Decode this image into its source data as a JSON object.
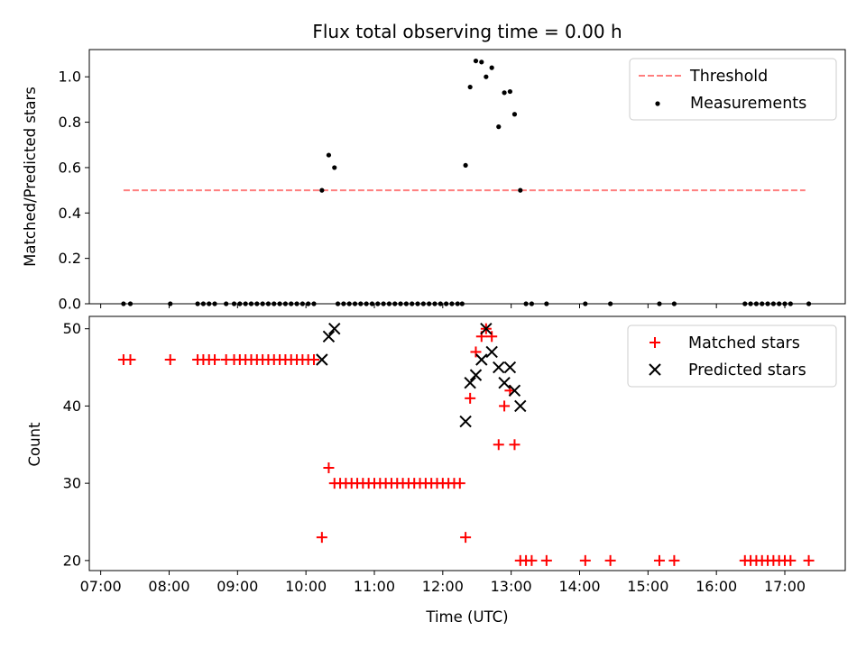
{
  "chart_data": [
    {
      "type": "scatter",
      "title": "Flux total observing time = 0.00 h",
      "ylabel": "Matched/Predicted stars",
      "xlabel": "",
      "xlim": [
        "06:50",
        "17:53"
      ],
      "ylim": [
        0,
        1.12
      ],
      "yticks": [
        "0.0",
        "0.2",
        "0.4",
        "0.6",
        "0.8",
        "1.0"
      ],
      "legend_position": "top-right",
      "threshold": {
        "name": "Threshold",
        "value": 0.5,
        "x_start": "07:20",
        "x_end": "17:18",
        "color": "#ff7f7f"
      },
      "series": [
        {
          "name": "Measurements",
          "color": "#000000",
          "points": [
            [
              "07:20",
              0
            ],
            [
              "07:26",
              0
            ],
            [
              "08:01",
              0
            ],
            [
              "08:25",
              0
            ],
            [
              "08:30",
              0
            ],
            [
              "08:35",
              0
            ],
            [
              "08:40",
              0
            ],
            [
              "08:50",
              0
            ],
            [
              "08:57",
              0
            ],
            [
              "09:02",
              0
            ],
            [
              "09:07",
              0
            ],
            [
              "09:12",
              0
            ],
            [
              "09:17",
              0
            ],
            [
              "09:22",
              0
            ],
            [
              "09:27",
              0
            ],
            [
              "09:32",
              0
            ],
            [
              "09:37",
              0
            ],
            [
              "09:42",
              0
            ],
            [
              "09:47",
              0
            ],
            [
              "09:52",
              0
            ],
            [
              "09:57",
              0
            ],
            [
              "10:02",
              0
            ],
            [
              "10:07",
              0
            ],
            [
              "10:14",
              0.5
            ],
            [
              "10:20",
              0.655
            ],
            [
              "10:25",
              0.6
            ],
            [
              "10:28",
              0
            ],
            [
              "10:33",
              0
            ],
            [
              "10:38",
              0
            ],
            [
              "10:43",
              0
            ],
            [
              "10:48",
              0
            ],
            [
              "10:53",
              0
            ],
            [
              "10:58",
              0
            ],
            [
              "11:03",
              0
            ],
            [
              "11:08",
              0
            ],
            [
              "11:13",
              0
            ],
            [
              "11:18",
              0
            ],
            [
              "11:23",
              0
            ],
            [
              "11:28",
              0
            ],
            [
              "11:33",
              0
            ],
            [
              "11:38",
              0
            ],
            [
              "11:43",
              0
            ],
            [
              "11:48",
              0
            ],
            [
              "11:53",
              0
            ],
            [
              "11:58",
              0
            ],
            [
              "12:03",
              0
            ],
            [
              "12:08",
              0
            ],
            [
              "12:13",
              0
            ],
            [
              "12:17",
              0
            ],
            [
              "12:20",
              0.61
            ],
            [
              "12:24",
              0.955
            ],
            [
              "12:29",
              1.07
            ],
            [
              "12:34",
              1.065
            ],
            [
              "12:38",
              1.0
            ],
            [
              "12:43",
              1.04
            ],
            [
              "12:49",
              0.78
            ],
            [
              "12:54",
              0.93
            ],
            [
              "12:59",
              0.935
            ],
            [
              "13:03",
              0.835
            ],
            [
              "13:08",
              0.5
            ],
            [
              "13:13",
              0
            ],
            [
              "13:18",
              0
            ],
            [
              "13:31",
              0
            ],
            [
              "14:05",
              0
            ],
            [
              "14:27",
              0
            ],
            [
              "15:10",
              0
            ],
            [
              "15:23",
              0
            ],
            [
              "16:25",
              0
            ],
            [
              "16:30",
              0
            ],
            [
              "16:35",
              0
            ],
            [
              "16:40",
              0
            ],
            [
              "16:45",
              0
            ],
            [
              "16:50",
              0
            ],
            [
              "16:55",
              0
            ],
            [
              "17:00",
              0
            ],
            [
              "17:05",
              0
            ],
            [
              "17:21",
              0
            ]
          ]
        }
      ]
    },
    {
      "type": "scatter",
      "title": "",
      "ylabel": "Count",
      "xlabel": "Time (UTC)",
      "xlim": [
        "06:50",
        "17:53"
      ],
      "ylim": [
        18.7,
        51.6
      ],
      "yticks": [
        "20",
        "30",
        "40",
        "50"
      ],
      "xticks": [
        "07:00",
        "08:00",
        "09:00",
        "10:00",
        "11:00",
        "12:00",
        "13:00",
        "14:00",
        "15:00",
        "16:00",
        "17:00"
      ],
      "legend_position": "top-right",
      "series": [
        {
          "name": "Matched stars",
          "color": "#ff0000",
          "marker": "plus",
          "points": [
            [
              "07:20",
              46
            ],
            [
              "07:26",
              46
            ],
            [
              "08:01",
              46
            ],
            [
              "08:25",
              46
            ],
            [
              "08:30",
              46
            ],
            [
              "08:35",
              46
            ],
            [
              "08:40",
              46
            ],
            [
              "08:50",
              46
            ],
            [
              "08:57",
              46
            ],
            [
              "09:02",
              46
            ],
            [
              "09:07",
              46
            ],
            [
              "09:12",
              46
            ],
            [
              "09:17",
              46
            ],
            [
              "09:22",
              46
            ],
            [
              "09:27",
              46
            ],
            [
              "09:32",
              46
            ],
            [
              "09:37",
              46
            ],
            [
              "09:42",
              46
            ],
            [
              "09:47",
              46
            ],
            [
              "09:52",
              46
            ],
            [
              "09:57",
              46
            ],
            [
              "10:02",
              46
            ],
            [
              "10:07",
              46
            ],
            [
              "10:14",
              23
            ],
            [
              "10:20",
              32
            ],
            [
              "10:25",
              30
            ],
            [
              "10:30",
              30
            ],
            [
              "10:35",
              30
            ],
            [
              "10:40",
              30
            ],
            [
              "10:45",
              30
            ],
            [
              "10:50",
              30
            ],
            [
              "10:55",
              30
            ],
            [
              "11:00",
              30
            ],
            [
              "11:05",
              30
            ],
            [
              "11:10",
              30
            ],
            [
              "11:15",
              30
            ],
            [
              "11:20",
              30
            ],
            [
              "11:25",
              30
            ],
            [
              "11:30",
              30
            ],
            [
              "11:35",
              30
            ],
            [
              "11:40",
              30
            ],
            [
              "11:45",
              30
            ],
            [
              "11:50",
              30
            ],
            [
              "11:55",
              30
            ],
            [
              "12:00",
              30
            ],
            [
              "12:05",
              30
            ],
            [
              "12:10",
              30
            ],
            [
              "12:15",
              30
            ],
            [
              "12:20",
              23
            ],
            [
              "12:24",
              41
            ],
            [
              "12:29",
              47
            ],
            [
              "12:34",
              49
            ],
            [
              "12:38",
              50
            ],
            [
              "12:43",
              49
            ],
            [
              "12:49",
              35
            ],
            [
              "12:54",
              40
            ],
            [
              "12:59",
              42
            ],
            [
              "13:03",
              35
            ],
            [
              "13:08",
              20
            ],
            [
              "13:13",
              20
            ],
            [
              "13:18",
              20
            ],
            [
              "13:31",
              20
            ],
            [
              "14:05",
              20
            ],
            [
              "14:27",
              20
            ],
            [
              "15:10",
              20
            ],
            [
              "15:23",
              20
            ],
            [
              "16:25",
              20
            ],
            [
              "16:30",
              20
            ],
            [
              "16:35",
              20
            ],
            [
              "16:40",
              20
            ],
            [
              "16:45",
              20
            ],
            [
              "16:50",
              20
            ],
            [
              "16:55",
              20
            ],
            [
              "17:00",
              20
            ],
            [
              "17:05",
              20
            ],
            [
              "17:21",
              20
            ]
          ]
        },
        {
          "name": "Predicted stars",
          "color": "#000000",
          "marker": "x",
          "points": [
            [
              "10:14",
              46
            ],
            [
              "10:20",
              49
            ],
            [
              "10:25",
              50
            ],
            [
              "12:20",
              38
            ],
            [
              "12:24",
              43
            ],
            [
              "12:29",
              44
            ],
            [
              "12:34",
              46
            ],
            [
              "12:38",
              50
            ],
            [
              "12:43",
              47
            ],
            [
              "12:49",
              45
            ],
            [
              "12:54",
              43
            ],
            [
              "12:59",
              45
            ],
            [
              "13:03",
              42
            ],
            [
              "13:08",
              40
            ]
          ]
        }
      ]
    }
  ]
}
